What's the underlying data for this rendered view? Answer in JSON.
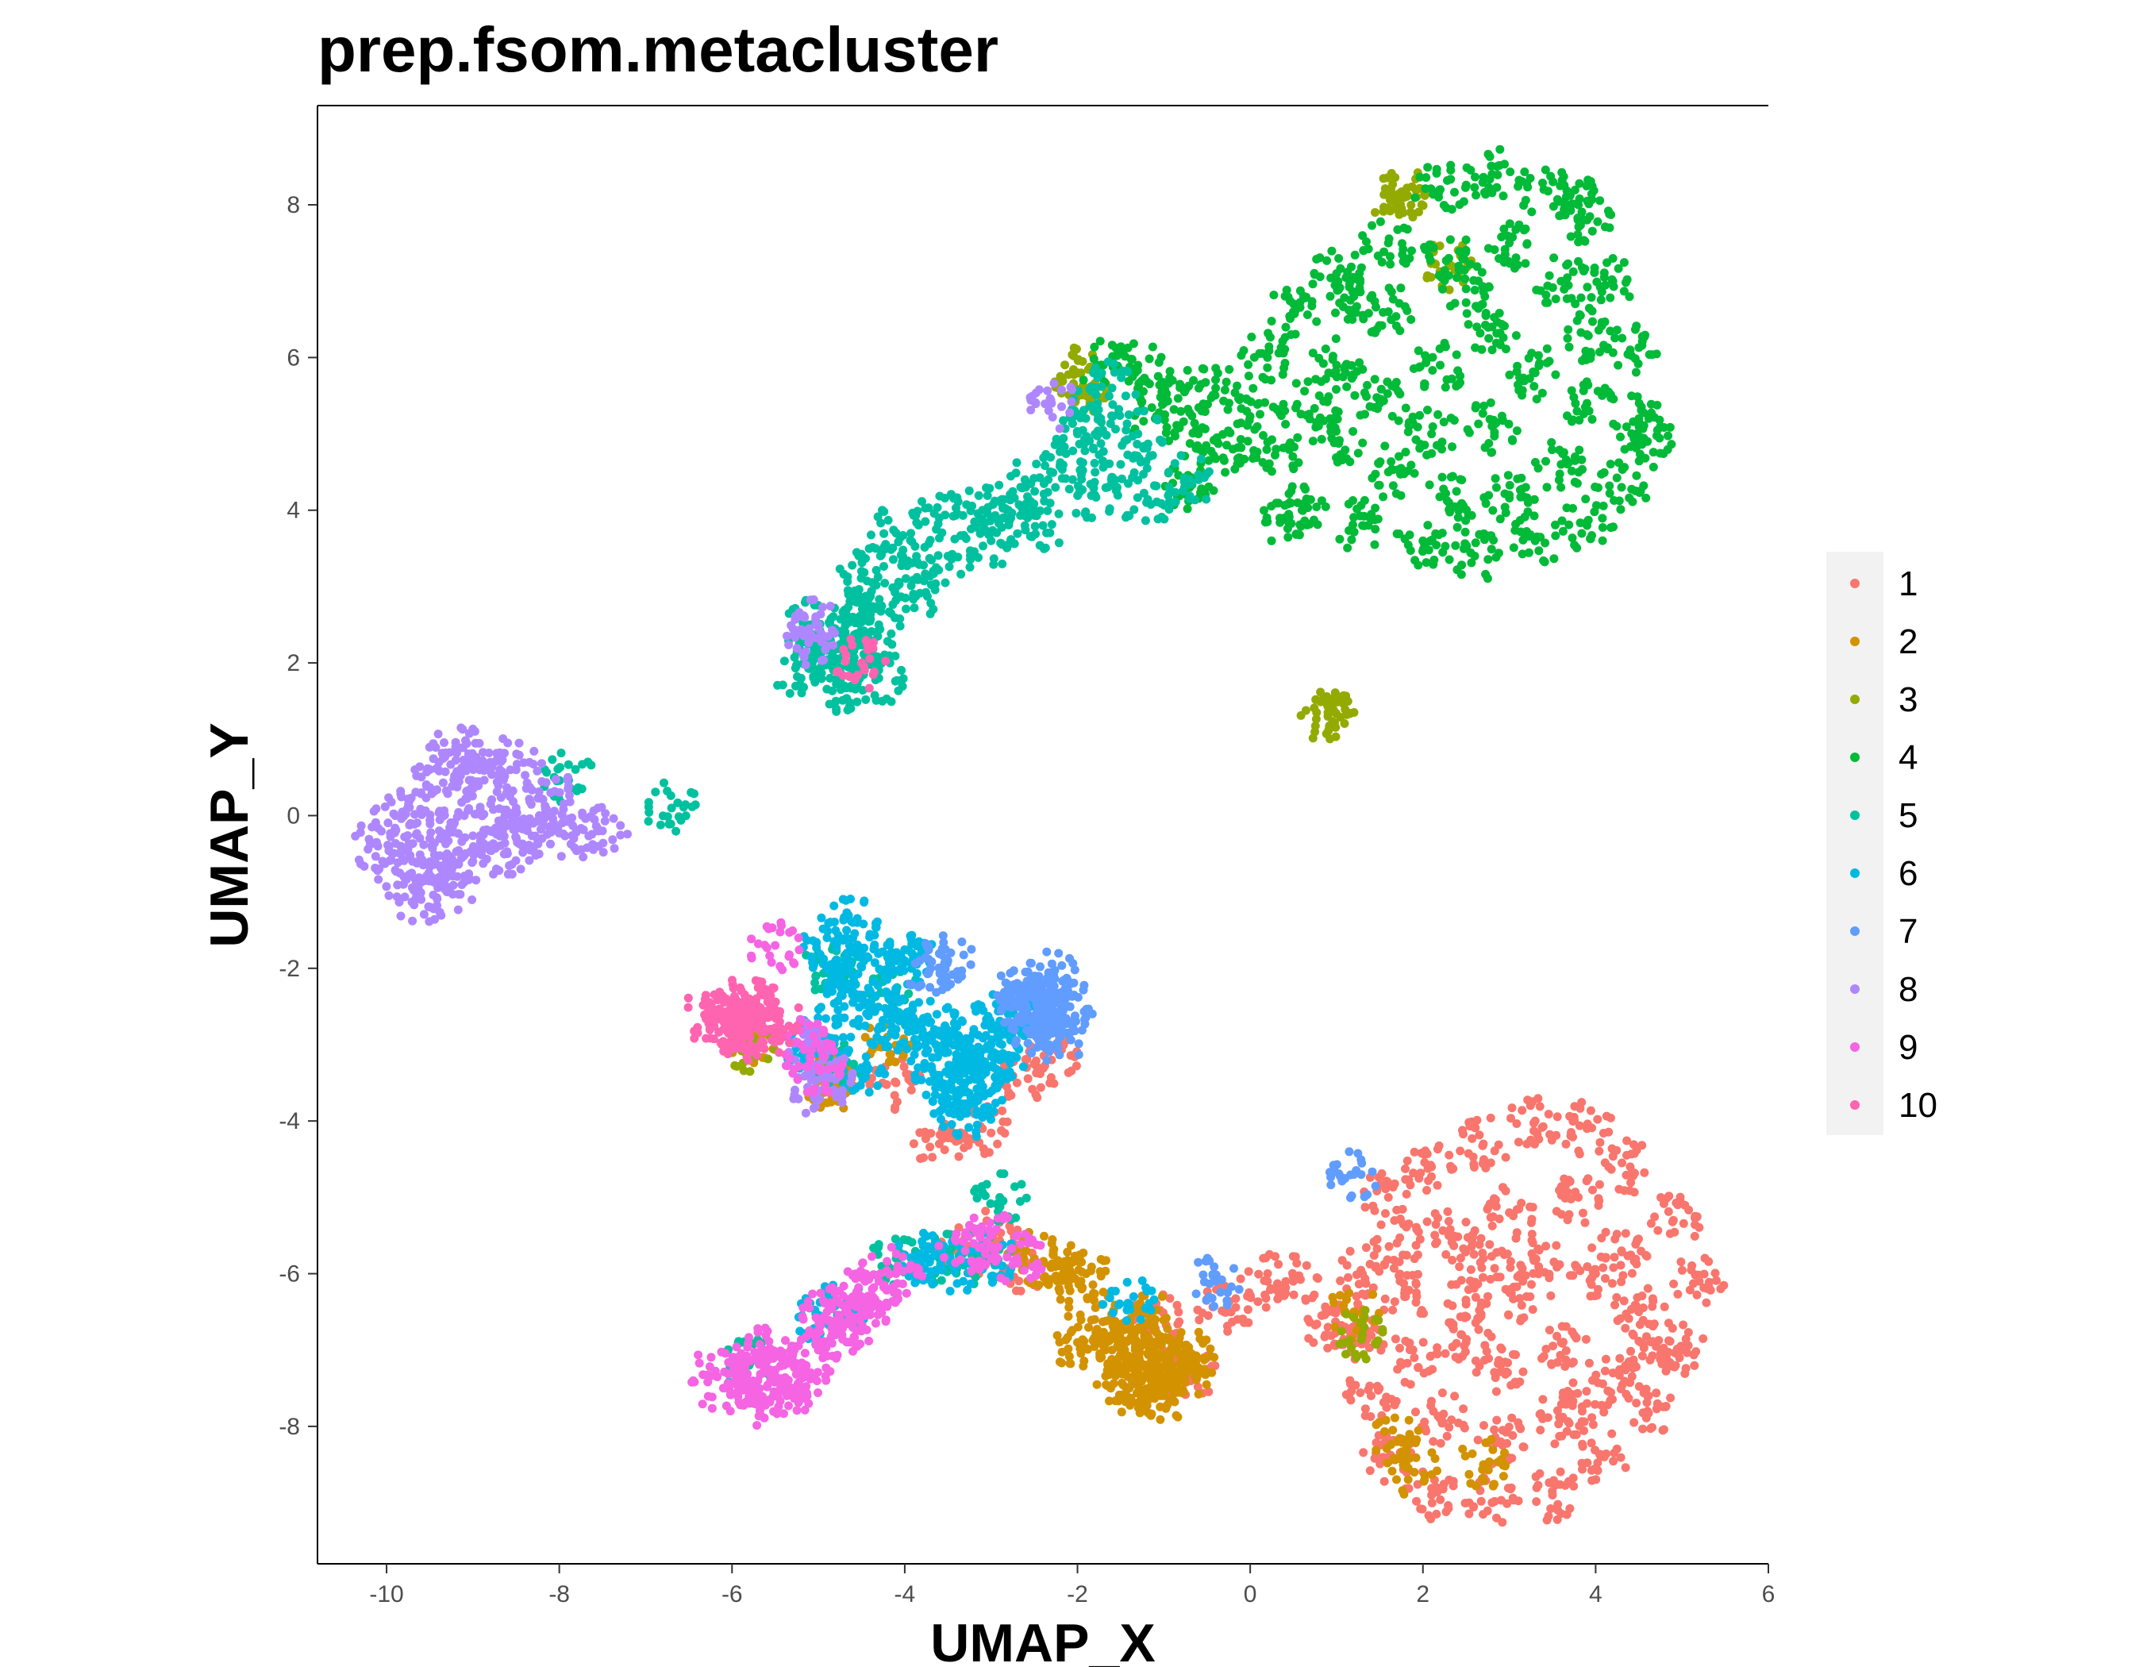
{
  "chart_data": {
    "type": "scatter",
    "title": "prep.fsom.metacluster",
    "xlabel": "UMAP_X",
    "ylabel": "UMAP_Y",
    "xlim": [
      -10.8,
      6
    ],
    "ylim": [
      -9.8,
      9.3
    ],
    "x_ticks": [
      -10,
      -8,
      -6,
      -4,
      -2,
      0,
      2,
      4,
      6
    ],
    "y_ticks": [
      -8,
      -6,
      -4,
      -2,
      0,
      2,
      4,
      6,
      8
    ],
    "grid": false,
    "legend_position": "right",
    "series": [
      {
        "name": "1",
        "color": "#F8766D",
        "values": [
          [
            1.6,
            -5.0
          ],
          [
            2.1,
            -4.6
          ],
          [
            2.7,
            -4.3
          ],
          [
            3.3,
            -4.0
          ],
          [
            3.9,
            -4.1
          ],
          [
            4.4,
            -4.6
          ],
          [
            4.9,
            -5.3
          ],
          [
            5.2,
            -6.1
          ],
          [
            5.0,
            -7.0
          ],
          [
            4.6,
            -7.8
          ],
          [
            4.1,
            -8.4
          ],
          [
            3.5,
            -8.9
          ],
          [
            2.8,
            -9.0
          ],
          [
            2.1,
            -8.9
          ],
          [
            1.6,
            -8.4
          ],
          [
            1.4,
            -7.6
          ],
          [
            1.3,
            -6.8
          ],
          [
            1.3,
            -6.0
          ],
          [
            2.3,
            -5.5
          ],
          [
            3.0,
            -5.2
          ],
          [
            3.8,
            -5.0
          ],
          [
            4.3,
            -5.7
          ],
          [
            4.5,
            -6.5
          ],
          [
            4.2,
            -7.3
          ],
          [
            3.6,
            -7.9
          ],
          [
            2.9,
            -8.2
          ],
          [
            2.2,
            -7.9
          ],
          [
            1.9,
            -7.1
          ],
          [
            1.8,
            -6.3
          ],
          [
            2.5,
            -6.4
          ],
          [
            3.2,
            -6.3
          ],
          [
            3.6,
            -6.9
          ],
          [
            2.9,
            -7.2
          ],
          [
            2.5,
            -6.9
          ],
          [
            3.3,
            -5.8
          ],
          [
            2.7,
            -5.8
          ],
          [
            4.0,
            -6.0
          ],
          [
            3.9,
            -7.7
          ],
          [
            1.7,
            -5.6
          ],
          [
            4.7,
            -6.9
          ],
          [
            1.1,
            -6.7
          ],
          [
            0.9,
            -6.7
          ],
          [
            0.5,
            -6.1
          ],
          [
            0.2,
            -6.1
          ],
          [
            -0.3,
            -6.5
          ],
          [
            -1.1,
            -6.6
          ],
          [
            -0.9,
            -7.2
          ],
          [
            -0.7,
            -7.3
          ],
          [
            -3.0,
            -5.5
          ],
          [
            -3.3,
            -5.7
          ],
          [
            -4.1,
            -3.5
          ],
          [
            -3.6,
            -4.3
          ],
          [
            -2.7,
            -3.5
          ],
          [
            -2.3,
            -3.2
          ],
          [
            -3.1,
            -4.1
          ],
          [
            -2.6,
            -5.9
          ]
        ]
      },
      {
        "name": "2",
        "color": "#D39200",
        "values": [
          [
            -1.5,
            -7.3
          ],
          [
            -1.3,
            -6.9
          ],
          [
            -1.1,
            -6.6
          ],
          [
            -0.9,
            -7.0
          ],
          [
            -1.4,
            -7.5
          ],
          [
            -1.0,
            -7.6
          ],
          [
            -0.8,
            -7.4
          ],
          [
            -1.2,
            -7.2
          ],
          [
            -1.6,
            -7.0
          ],
          [
            -1.0,
            -7.1
          ],
          [
            -1.3,
            -7.4
          ],
          [
            -0.9,
            -7.2
          ],
          [
            -1.5,
            -6.9
          ],
          [
            -1.1,
            -7.5
          ],
          [
            -1.2,
            -6.8
          ],
          [
            -0.7,
            -7.1
          ],
          [
            -2.5,
            -5.8
          ],
          [
            -2.2,
            -5.9
          ],
          [
            -2.1,
            -6.1
          ],
          [
            -1.9,
            -6.0
          ],
          [
            -1.8,
            -6.6
          ],
          [
            -2.0,
            -6.9
          ],
          [
            -4.9,
            -3.5
          ],
          [
            -4.2,
            -2.9
          ],
          [
            1.2,
            -6.5
          ],
          [
            1.7,
            -8.2
          ],
          [
            1.9,
            -8.6
          ],
          [
            2.7,
            -8.5
          ],
          [
            -5.8,
            -2.9
          ],
          [
            -4.8,
            -3.5
          ]
        ]
      },
      {
        "name": "3",
        "color": "#93AA00",
        "values": [
          [
            0.9,
            1.3
          ],
          [
            0.9,
            1.35
          ],
          [
            1.7,
            8.1
          ],
          [
            1.8,
            8.15
          ],
          [
            -2.0,
            5.8
          ],
          [
            -1.9,
            5.6
          ],
          [
            -5.8,
            -3.0
          ],
          [
            1.3,
            -6.8
          ],
          [
            2.3,
            7.2
          ]
        ]
      },
      {
        "name": "4",
        "color": "#00BA38",
        "values": [
          [
            0.2,
            6.0
          ],
          [
            0.5,
            6.6
          ],
          [
            1.0,
            7.1
          ],
          [
            1.6,
            7.5
          ],
          [
            2.2,
            8.2
          ],
          [
            2.8,
            8.4
          ],
          [
            3.4,
            8.2
          ],
          [
            3.9,
            7.8
          ],
          [
            4.2,
            7.0
          ],
          [
            4.4,
            6.1
          ],
          [
            4.5,
            5.2
          ],
          [
            4.3,
            4.3
          ],
          [
            3.9,
            3.8
          ],
          [
            3.3,
            3.6
          ],
          [
            2.6,
            3.4
          ],
          [
            2.0,
            3.6
          ],
          [
            1.3,
            3.8
          ],
          [
            0.6,
            4.0
          ],
          [
            0.3,
            4.8
          ],
          [
            0.1,
            5.4
          ],
          [
            1.0,
            5.9
          ],
          [
            1.6,
            6.6
          ],
          [
            2.3,
            7.3
          ],
          [
            3.0,
            7.5
          ],
          [
            3.6,
            7.0
          ],
          [
            3.9,
            6.3
          ],
          [
            3.9,
            5.4
          ],
          [
            3.6,
            4.6
          ],
          [
            3.0,
            4.2
          ],
          [
            2.3,
            4.1
          ],
          [
            1.6,
            4.5
          ],
          [
            1.0,
            4.9
          ],
          [
            0.8,
            5.5
          ],
          [
            1.5,
            5.4
          ],
          [
            2.2,
            5.9
          ],
          [
            2.8,
            6.4
          ],
          [
            3.3,
            5.8
          ],
          [
            2.8,
            5.1
          ],
          [
            2.1,
            5.0
          ],
          [
            2.5,
            6.9
          ],
          [
            -0.4,
            5.6
          ],
          [
            -0.9,
            5.7
          ],
          [
            -1.3,
            5.9
          ],
          [
            -1.7,
            5.9
          ],
          [
            -1.1,
            5.2
          ],
          [
            -0.6,
            5.0
          ],
          [
            -0.2,
            4.8
          ],
          [
            -0.7,
            4.3
          ],
          [
            1.2,
            6.8
          ],
          [
            3.8,
            8.0
          ],
          [
            4.6,
            4.9
          ],
          [
            0.4,
            3.9
          ]
        ]
      },
      {
        "name": "5",
        "color": "#00C19F",
        "values": [
          [
            -5.2,
            1.8
          ],
          [
            -4.9,
            2.3
          ],
          [
            -4.6,
            2.6
          ],
          [
            -4.4,
            2.1
          ],
          [
            -4.7,
            1.7
          ],
          [
            -5.0,
            2.1
          ],
          [
            -4.3,
            2.5
          ],
          [
            -4.6,
            2.0
          ],
          [
            -5.1,
            2.5
          ],
          [
            -4.8,
            1.9
          ],
          [
            -4.3,
            1.8
          ],
          [
            -4.5,
            3.2
          ],
          [
            -4.1,
            3.7
          ],
          [
            -3.6,
            3.9
          ],
          [
            -3.1,
            4.0
          ],
          [
            -2.6,
            4.3
          ],
          [
            -2.2,
            4.6
          ],
          [
            -2.0,
            5.0
          ],
          [
            -1.8,
            5.3
          ],
          [
            -1.6,
            5.6
          ],
          [
            -1.5,
            4.6
          ],
          [
            -1.8,
            4.2
          ],
          [
            -2.4,
            3.8
          ],
          [
            -3.0,
            3.6
          ],
          [
            -3.5,
            3.4
          ],
          [
            -4.0,
            3.3
          ],
          [
            -4.4,
            2.9
          ],
          [
            -3.9,
            2.9
          ],
          [
            -2.8,
            4.0
          ],
          [
            -1.3,
            5.0
          ],
          [
            -1.2,
            4.1
          ],
          [
            -0.7,
            4.4
          ],
          [
            -6.7,
            0.1
          ],
          [
            -7.9,
            0.5
          ],
          [
            -4.8,
            -3.3
          ],
          [
            -3.2,
            -5.8
          ],
          [
            -2.9,
            -5.0
          ],
          [
            -3.6,
            -5.8
          ],
          [
            -4.1,
            -5.8
          ],
          [
            -5.8,
            -7.2
          ],
          [
            -4.9,
            -2.0
          ],
          [
            -4.1,
            -2.3
          ]
        ]
      },
      {
        "name": "6",
        "color": "#00B9E3",
        "values": [
          [
            -4.9,
            -1.6
          ],
          [
            -4.6,
            -1.4
          ],
          [
            -4.3,
            -1.8
          ],
          [
            -4.0,
            -1.9
          ],
          [
            -4.6,
            -2.1
          ],
          [
            -4.7,
            -2.5
          ],
          [
            -4.2,
            -2.6
          ],
          [
            -4.4,
            -2.3
          ],
          [
            -4.8,
            -1.9
          ],
          [
            -4.1,
            -2.8
          ],
          [
            -3.8,
            -2.9
          ],
          [
            -3.5,
            -3.1
          ],
          [
            -3.2,
            -2.8
          ],
          [
            -3.0,
            -3.0
          ],
          [
            -3.6,
            -3.4
          ],
          [
            -3.3,
            -3.5
          ],
          [
            -3.7,
            -2.7
          ],
          [
            -2.8,
            -2.6
          ],
          [
            -2.9,
            -3.2
          ],
          [
            -3.4,
            -2.9
          ],
          [
            -3.9,
            -1.9
          ],
          [
            -3.5,
            -3.7
          ],
          [
            -3.1,
            -3.6
          ],
          [
            -4.5,
            -3.3
          ],
          [
            -4.9,
            -2.9
          ],
          [
            -5.1,
            -3.0
          ],
          [
            -3.3,
            -3.9
          ],
          [
            -1.4,
            -6.4
          ],
          [
            -3.7,
            -5.8
          ],
          [
            -3.8,
            -5.8
          ],
          [
            -3.4,
            -5.9
          ],
          [
            -3.0,
            -5.8
          ],
          [
            -5.0,
            -6.6
          ],
          [
            -4.7,
            -6.4
          ],
          [
            -2.8,
            -2.6
          ],
          [
            -3.1,
            -3.4
          ]
        ]
      },
      {
        "name": "7",
        "color": "#619CFF",
        "values": [
          [
            -2.6,
            -2.5
          ],
          [
            -2.4,
            -2.2
          ],
          [
            -2.2,
            -2.4
          ],
          [
            -2.3,
            -2.7
          ],
          [
            -2.5,
            -2.8
          ],
          [
            -2.2,
            -2.9
          ],
          [
            -2.4,
            -2.6
          ],
          [
            -2.1,
            -2.5
          ],
          [
            -2.7,
            -2.3
          ],
          [
            -2.3,
            -2.1
          ],
          [
            -2.5,
            -2.4
          ],
          [
            -3.5,
            -1.9
          ],
          [
            -3.7,
            -2.0
          ],
          [
            1.2,
            -4.7
          ],
          [
            -0.4,
            -6.1
          ]
        ]
      },
      {
        "name": "8",
        "color": "#AE87FF",
        "values": [
          [
            -10.1,
            -0.4
          ],
          [
            -9.8,
            -0.8
          ],
          [
            -9.6,
            -1.1
          ],
          [
            -9.3,
            -1.0
          ],
          [
            -9.0,
            -0.6
          ],
          [
            -8.6,
            -0.5
          ],
          [
            -8.2,
            -0.3
          ],
          [
            -7.8,
            -0.2
          ],
          [
            -7.5,
            -0.2
          ],
          [
            -8.1,
            0.3
          ],
          [
            -8.5,
            0.6
          ],
          [
            -8.8,
            0.7
          ],
          [
            -9.2,
            0.9
          ],
          [
            -9.4,
            0.6
          ],
          [
            -9.6,
            0.3
          ],
          [
            -9.9,
            0.0
          ],
          [
            -9.5,
            -0.3
          ],
          [
            -9.1,
            0.0
          ],
          [
            -8.8,
            -0.2
          ],
          [
            -8.5,
            0.1
          ],
          [
            -9.3,
            -0.5
          ],
          [
            -9.7,
            -0.6
          ],
          [
            -8.3,
            -0.1
          ],
          [
            -9.0,
            0.4
          ],
          [
            -5.1,
            2.3
          ],
          [
            -5.0,
            2.5
          ],
          [
            -2.3,
            5.4
          ],
          [
            -4.9,
            -3.4
          ],
          [
            -5.0,
            -3.6
          ],
          [
            -5.1,
            -3.0
          ]
        ]
      },
      {
        "name": "9",
        "color": "#F564E3",
        "values": [
          [
            -6.1,
            -7.5
          ],
          [
            -5.9,
            -7.2
          ],
          [
            -5.7,
            -7.4
          ],
          [
            -5.5,
            -7.6
          ],
          [
            -5.8,
            -7.7
          ],
          [
            -5.4,
            -7.2
          ],
          [
            -5.2,
            -7.3
          ],
          [
            -5.0,
            -7.0
          ],
          [
            -4.8,
            -6.8
          ],
          [
            -4.9,
            -6.5
          ],
          [
            -4.6,
            -6.3
          ],
          [
            -4.3,
            -6.1
          ],
          [
            -4.1,
            -6.0
          ],
          [
            -4.6,
            -6.6
          ],
          [
            -5.6,
            -7.0
          ],
          [
            -6.2,
            -7.3
          ],
          [
            -5.3,
            -7.5
          ],
          [
            -4.4,
            -6.4
          ],
          [
            -3.0,
            -5.5
          ],
          [
            -2.7,
            -5.8
          ],
          [
            -5.2,
            -3.0
          ],
          [
            -5.0,
            -3.3
          ],
          [
            -5.5,
            -1.7
          ],
          [
            -3.3,
            -5.7
          ]
        ]
      },
      {
        "name": "10",
        "color": "#FF64B0",
        "values": [
          [
            -6.3,
            -2.6
          ],
          [
            -6.0,
            -2.6
          ],
          [
            -5.8,
            -2.7
          ],
          [
            -5.6,
            -2.8
          ],
          [
            -5.9,
            -2.9
          ],
          [
            -6.1,
            -2.7
          ],
          [
            -5.7,
            -2.5
          ],
          [
            -5.5,
            -2.6
          ],
          [
            -5.8,
            -2.4
          ],
          [
            -6.0,
            -2.8
          ],
          [
            -4.5,
            2.0
          ]
        ]
      }
    ]
  }
}
